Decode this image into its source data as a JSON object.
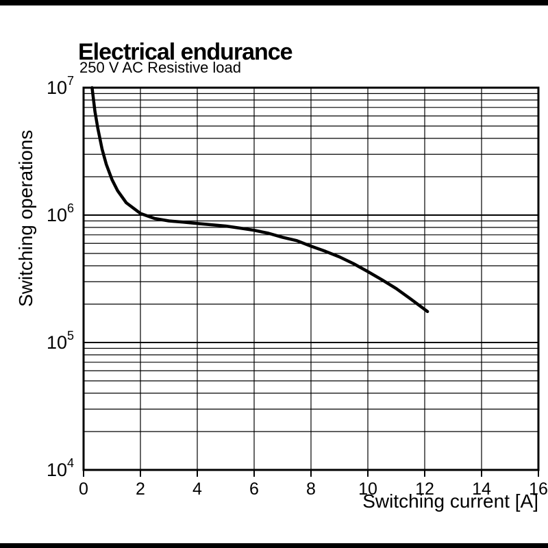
{
  "page": {
    "background": "#ffffff",
    "border_color": "#000000"
  },
  "chart_data": {
    "type": "line",
    "title": "Electrical endurance",
    "subtitle": "250 V AC Resistive load",
    "xlabel": "Switching current [A]",
    "ylabel": "Switching operations",
    "x_scale": "linear",
    "y_scale": "log",
    "xlim": [
      0,
      16
    ],
    "ylim": [
      10000,
      10000000
    ],
    "x_ticks": [
      0,
      2,
      4,
      6,
      8,
      10,
      12,
      14,
      16
    ],
    "y_tick_exponents": [
      4,
      5,
      6,
      7
    ],
    "grid": "horizontal log minor + major, vertical at x ticks",
    "legend": "none",
    "line_color": "#000000",
    "grid_color": "#000000",
    "axis_color": "#000000",
    "text_color": "#000000",
    "series": [
      {
        "name": "switching-operations-vs-current",
        "x": [
          0.3,
          0.4,
          0.5,
          0.65,
          0.8,
          1.0,
          1.2,
          1.5,
          2.0,
          2.5,
          3.0,
          3.5,
          4.0,
          4.5,
          5.0,
          5.5,
          6.0,
          6.5,
          7.0,
          7.5,
          8.0,
          8.5,
          9.0,
          9.5,
          10.0,
          10.5,
          11.0,
          11.5,
          12.1
        ],
        "y": [
          10000000,
          6500000,
          4800000,
          3300000,
          2500000,
          1900000,
          1550000,
          1250000,
          1030000,
          940000,
          900000,
          880000,
          860000,
          840000,
          820000,
          790000,
          760000,
          720000,
          670000,
          630000,
          570000,
          520000,
          470000,
          415000,
          360000,
          310000,
          265000,
          220000,
          175000
        ]
      }
    ]
  }
}
